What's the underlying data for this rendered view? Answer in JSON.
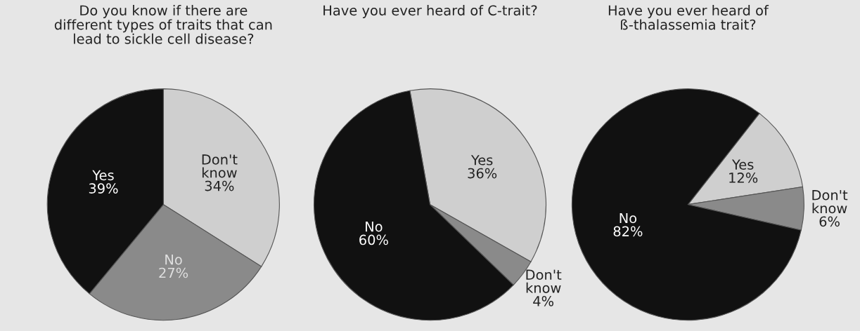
{
  "chart_data": [
    {
      "type": "pie",
      "title": "Do you know if there are\ndifferent types of traits that can\nlead to sickle cell disease?",
      "categories": [
        "Don't know",
        "No",
        "Yes"
      ],
      "values": [
        34,
        27,
        39
      ],
      "colors": [
        "#cfcfcf",
        "#8a8a8a",
        "#111111"
      ],
      "value_labels": [
        "34%",
        "27%",
        "39%"
      ]
    },
    {
      "type": "pie",
      "title": "Have you ever heard of C-trait?",
      "categories": [
        "Yes",
        "Don't know",
        "No"
      ],
      "values": [
        36,
        4,
        60
      ],
      "colors": [
        "#cfcfcf",
        "#8a8a8a",
        "#111111"
      ],
      "value_labels": [
        "36%",
        "4%",
        "60%"
      ]
    },
    {
      "type": "pie",
      "title": "Have you ever heard of\nß-thalassemia trait?",
      "categories": [
        "Yes",
        "Don't know",
        "No"
      ],
      "values": [
        12,
        6,
        82
      ],
      "colors": [
        "#cfcfcf",
        "#8a8a8a",
        "#111111"
      ],
      "value_labels": [
        "12%",
        "6%",
        "82%"
      ]
    }
  ]
}
